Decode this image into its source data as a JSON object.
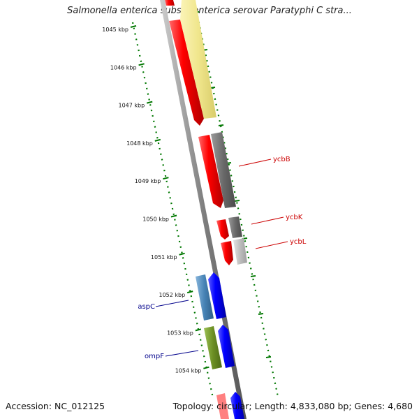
{
  "title": "Salmonella enterica subsp. enterica serovar Paratyphi C stra...",
  "footer": {
    "accession": "Accession: NC_012125",
    "summary": "Topology: circular; Length: 4,833,080 bp; Genes: 4,680"
  },
  "scale": {
    "unit": "kbp",
    "ticks": [
      "1045 kbp",
      "1046 kbp",
      "1047 kbp",
      "1048 kbp",
      "1049 kbp",
      "1050 kbp",
      "1051 kbp",
      "1052 kbp",
      "1053 kbp",
      "1054 kbp"
    ]
  },
  "genes": [
    {
      "label": "ycbB",
      "color": "#cc0000"
    },
    {
      "label": "ycbK",
      "color": "#cc0000"
    },
    {
      "label": "ycbL",
      "color": "#cc0000"
    },
    {
      "label": "aspC",
      "color": "#00008b"
    },
    {
      "label": "ompF",
      "color": "#00008b"
    }
  ],
  "colors": {
    "cds_red": "#ff0000",
    "cds_blue": "#0000ff",
    "cog_yellow": "#f0e68c",
    "cog_gray": "#696969",
    "cog_lightgray": "#bdbdbd",
    "cog_steelblue": "#4682b4",
    "cog_olive": "#6b8e23",
    "backbone": "#8c8c8c",
    "tick_green": "#007700"
  }
}
